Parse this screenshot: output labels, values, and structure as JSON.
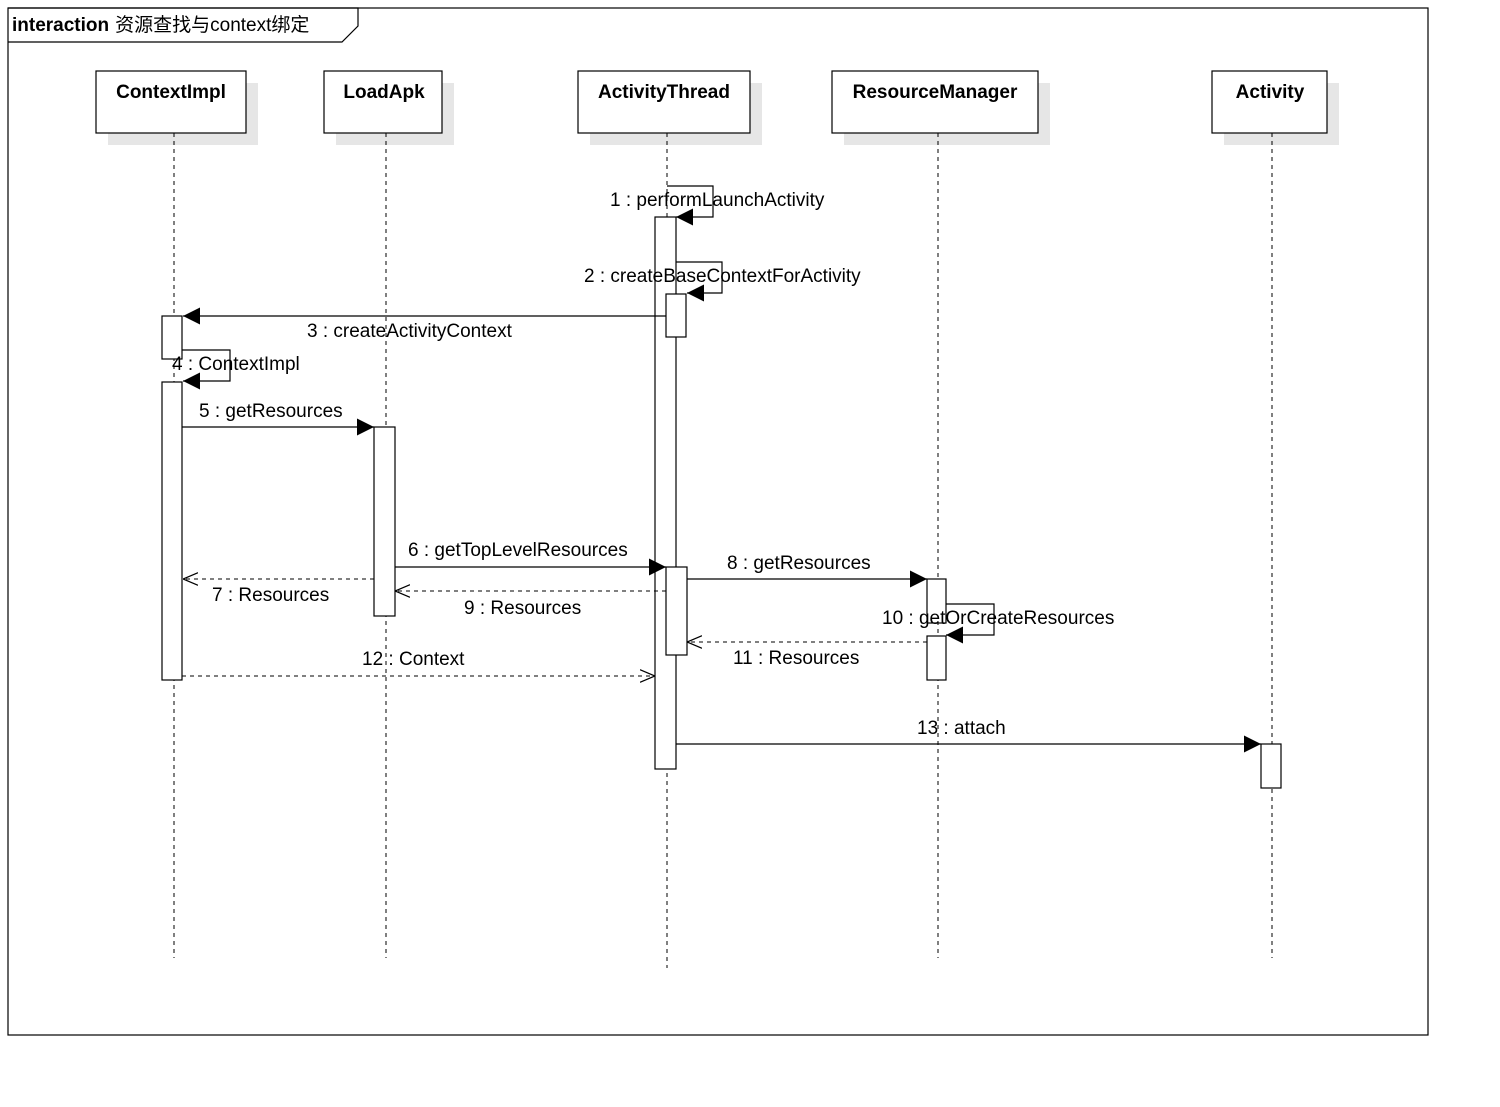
{
  "frame": {
    "keyword": "interaction",
    "name": "资源查找与context绑定"
  },
  "lifelines": [
    {
      "id": "ContextImpl",
      "label": "ContextImpl"
    },
    {
      "id": "LoadApk",
      "label": "LoadApk"
    },
    {
      "id": "ActivityThread",
      "label": "ActivityThread"
    },
    {
      "id": "ResourceManager",
      "label": "ResourceManager"
    },
    {
      "id": "Activity",
      "label": "Activity"
    }
  ],
  "messages": [
    {
      "number": "1",
      "label": "1 : performLaunchActivity",
      "from": "ActivityThread",
      "to": "ActivityThread",
      "kind": "self-call"
    },
    {
      "number": "2",
      "label": "2 : createBaseContextForActivity",
      "from": "ActivityThread",
      "to": "ActivityThread",
      "kind": "self-call"
    },
    {
      "number": "3",
      "label": "3 : createActivityContext",
      "from": "ActivityThread",
      "to": "ContextImpl",
      "kind": "call"
    },
    {
      "number": "4",
      "label": "4 : ContextImpl",
      "from": "ContextImpl",
      "to": "ContextImpl",
      "kind": "self-call"
    },
    {
      "number": "5",
      "label": "5 : getResources",
      "from": "ContextImpl",
      "to": "LoadApk",
      "kind": "call"
    },
    {
      "number": "6",
      "label": "6 : getTopLevelResources",
      "from": "LoadApk",
      "to": "ActivityThread",
      "kind": "call"
    },
    {
      "number": "7",
      "label": "7 : Resources",
      "from": "LoadApk",
      "to": "ContextImpl",
      "kind": "return"
    },
    {
      "number": "8",
      "label": "8 : getResources",
      "from": "ActivityThread",
      "to": "ResourceManager",
      "kind": "call"
    },
    {
      "number": "9",
      "label": "9 : Resources",
      "from": "ActivityThread",
      "to": "LoadApk",
      "kind": "return"
    },
    {
      "number": "10",
      "label": "10 : getOrCreateResources",
      "from": "ResourceManager",
      "to": "ResourceManager",
      "kind": "self-call"
    },
    {
      "number": "11",
      "label": "11 : Resources",
      "from": "ResourceManager",
      "to": "ActivityThread",
      "kind": "return"
    },
    {
      "number": "12",
      "label": "12 : Context",
      "from": "ContextImpl",
      "to": "ActivityThread",
      "kind": "return"
    },
    {
      "number": "13",
      "label": "13 : attach",
      "from": "ActivityThread",
      "to": "Activity",
      "kind": "call"
    }
  ]
}
